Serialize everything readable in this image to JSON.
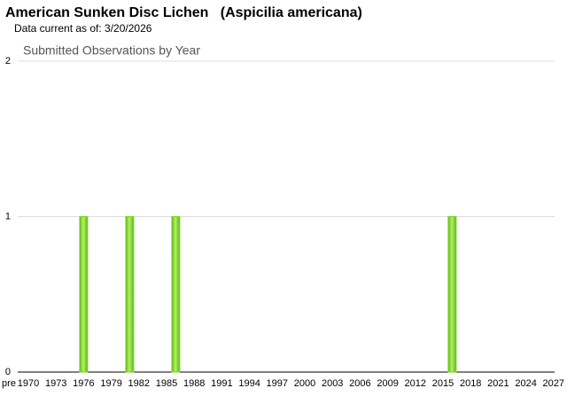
{
  "header": {
    "title": "American Sunken Disc Lichen   (Aspicilia americana)",
    "subtitle": "Data current as of: 3/20/2026"
  },
  "chart_data": {
    "type": "bar",
    "title": "Submitted Observations by Year",
    "categories": [
      "pre",
      "1970",
      null,
      null,
      "1973",
      null,
      null,
      "1976",
      null,
      null,
      "1979",
      null,
      null,
      "1982",
      null,
      null,
      "1985",
      null,
      null,
      "1988",
      null,
      null,
      "1991",
      null,
      null,
      "1994",
      null,
      null,
      "1997",
      null,
      null,
      "2000",
      null,
      null,
      "2003",
      null,
      null,
      "2006",
      null,
      null,
      "2009",
      null,
      null,
      "2012",
      null,
      null,
      "2015",
      null,
      null,
      "2018",
      null,
      null,
      "2021",
      null,
      null,
      "2024",
      null,
      null,
      "2027"
    ],
    "values": [
      0,
      0,
      0,
      0,
      0,
      0,
      0,
      1,
      0,
      0,
      0,
      0,
      1,
      0,
      0,
      0,
      0,
      1,
      0,
      0,
      0,
      0,
      0,
      0,
      0,
      0,
      0,
      0,
      0,
      0,
      0,
      0,
      0,
      0,
      0,
      0,
      0,
      0,
      0,
      0,
      0,
      0,
      0,
      0,
      0,
      0,
      0,
      1,
      0,
      0,
      0,
      0,
      0,
      0,
      0,
      0,
      0,
      0,
      0
    ],
    "color": "#7ed321",
    "ylim": [
      0,
      2
    ],
    "yticks": [
      0,
      1,
      2
    ],
    "grid": true
  }
}
